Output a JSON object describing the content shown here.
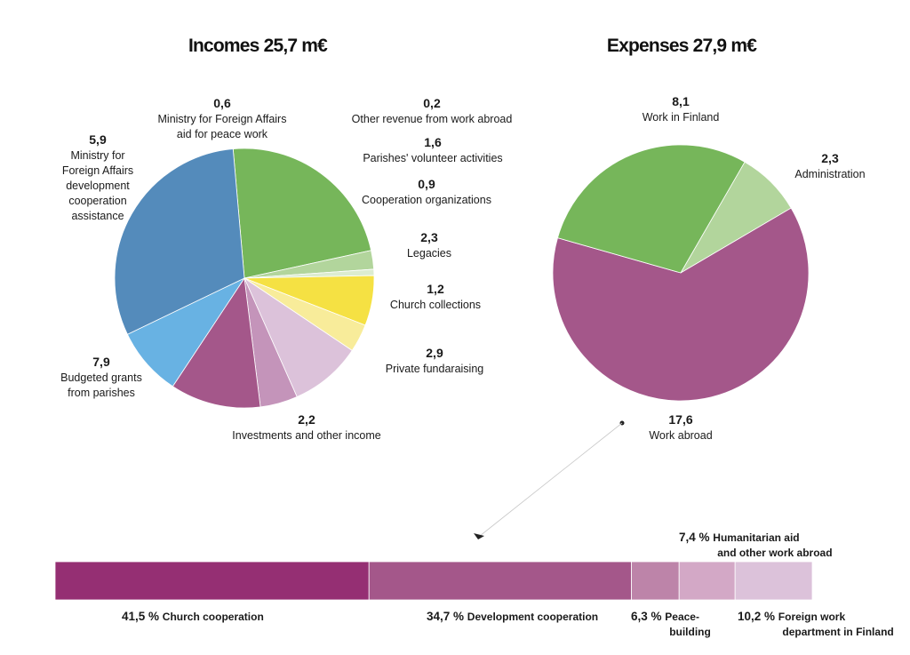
{
  "chart_data": [
    {
      "type": "pie",
      "title": "Incomes 25,7 m€",
      "slices": [
        {
          "value": "5,9",
          "label": "Ministry for|Foreign Affairs|development|cooperation|assistance",
          "v": 5.9,
          "color": "#76b65a"
        },
        {
          "value": "0,6",
          "label": "Ministry for Foreign Affairs|aid for peace work",
          "v": 0.6,
          "color": "#b2d59c"
        },
        {
          "value": "0,2",
          "label": "Other revenue from work abroad",
          "v": 0.2,
          "color": "#dcecd0"
        },
        {
          "value": "1,6",
          "label": "Parishes' volunteer activities",
          "v": 1.6,
          "color": "#f5e143"
        },
        {
          "value": "0,9",
          "label": "Cooperation organizations",
          "v": 0.9,
          "color": "#f8ec9a"
        },
        {
          "value": "2,3",
          "label": "Legacies",
          "v": 2.3,
          "color": "#dcc2da"
        },
        {
          "value": "1,2",
          "label": "Church collections",
          "v": 1.2,
          "color": "#c494ba"
        },
        {
          "value": "2,9",
          "label": "Private fundaraising",
          "v": 2.9,
          "color": "#a4578a"
        },
        {
          "value": "2,2",
          "label": "Investments and other income",
          "v": 2.2,
          "color": "#68b2e3"
        },
        {
          "value": "7,9",
          "label": "Budgeted grants|from parishes",
          "v": 7.9,
          "color": "#548bbb"
        }
      ]
    },
    {
      "type": "pie",
      "title": "Expenses 27,9 m€",
      "slices": [
        {
          "value": "2,3",
          "label": "Administration",
          "v": 2.3,
          "color": "#b2d59c"
        },
        {
          "value": "17,6",
          "label": "Work abroad",
          "v": 17.6,
          "color": "#a4578a"
        },
        {
          "value": "8,1",
          "label": "Work in Finland",
          "v": 8.1,
          "color": "#76b65a"
        }
      ]
    },
    {
      "type": "bar",
      "orientation": "horizontal-stacked",
      "segments": [
        {
          "value": "41,5 %",
          "label": "Church cooperation",
          "v": 41.5,
          "color": "#952f73"
        },
        {
          "value": "34,7 %",
          "label": "Development cooperation",
          "v": 34.7,
          "color": "#a4578a"
        },
        {
          "value": "6,3 %",
          "label": "Peace-|building",
          "v": 6.3,
          "color": "#bd84a9"
        },
        {
          "value": "7,4 %",
          "label": "Humanitarian aid|and other work abroad",
          "v": 7.4,
          "color": "#d3a8c6"
        },
        {
          "value": "10,2 %",
          "label": "Foreign work|department in Finland",
          "v": 10.2,
          "color": "#dcc2da"
        }
      ]
    }
  ]
}
